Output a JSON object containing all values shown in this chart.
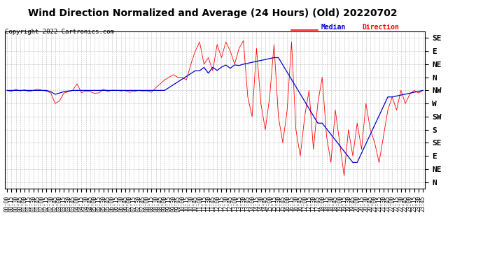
{
  "title": "Wind Direction Normalized and Average (24 Hours) (Old) 20220702",
  "copyright": "Copyright 2022 Cartronics.com",
  "legend_label_blue": "Median",
  "legend_label_red": "Direction",
  "legend_label_color_blue": "#0000cc",
  "legend_label_color_red": "#ff0000",
  "background_color": "#ffffff",
  "plot_bg_color": "#ffffff",
  "grid_color": "#aaaaaa",
  "y_labels": [
    "SE",
    "E",
    "NE",
    "N",
    "NW",
    "W",
    "SW",
    "S",
    "SE",
    "E",
    "NE",
    "N"
  ],
  "y_values": [
    0,
    1,
    2,
    3,
    4,
    5,
    6,
    7,
    8,
    9,
    10,
    11
  ],
  "red_line_color": "#ff0000",
  "blue_line_color": "#0000cc",
  "title_fontsize": 10,
  "copyright_fontsize": 6.5,
  "tick_fontsize": 5.5,
  "y_tick_fontsize": 8
}
